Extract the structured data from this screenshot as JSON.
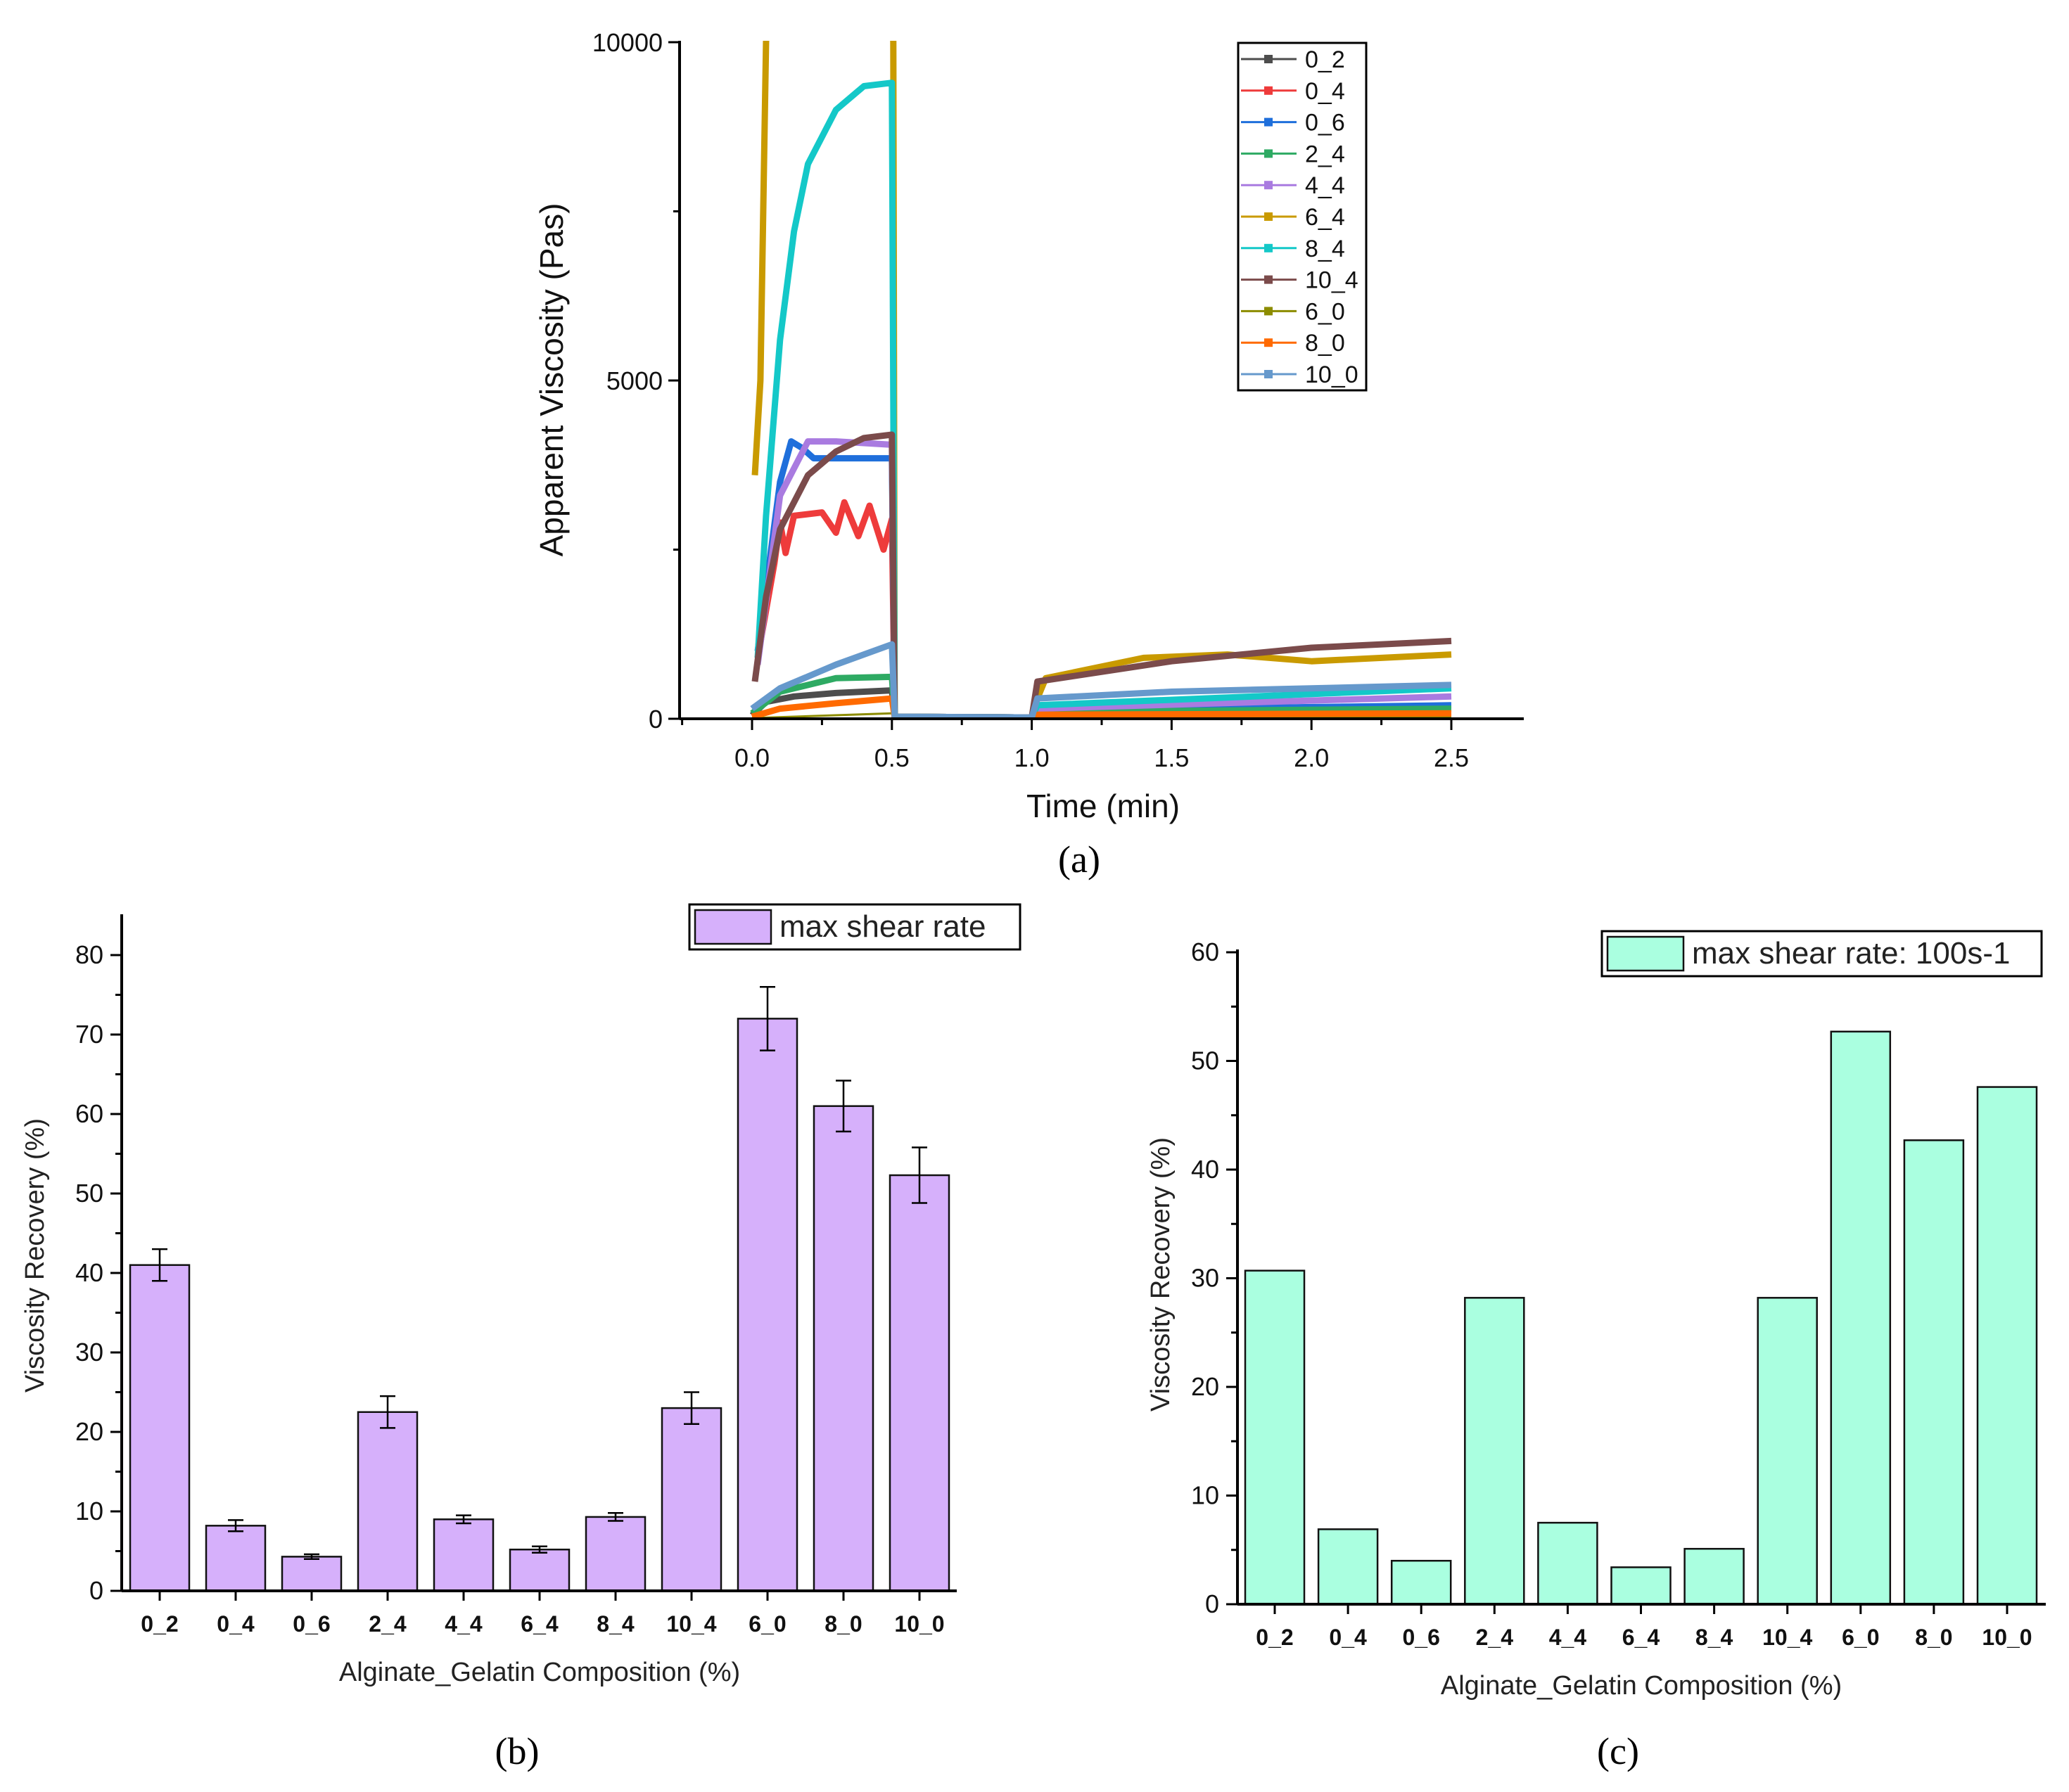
{
  "chart_data": [
    {
      "panel_label": "(a)",
      "type": "line",
      "xlabel": "Time (min)",
      "ylabel": "Apparent Viscosity (Pas)",
      "xlim": [
        -0.25,
        2.75
      ],
      "ylim": [
        0,
        10000
      ],
      "xticks": [
        "0.0",
        "0.5",
        "1.0",
        "1.5",
        "2.0",
        "2.5"
      ],
      "xtick_values": [
        0,
        0.5,
        1.0,
        1.5,
        2.0,
        2.5
      ],
      "yticks": [
        "0",
        "5000",
        "10000"
      ],
      "ytick_values": [
        0,
        5000,
        10000
      ],
      "legend_position": "top-right",
      "series": [
        {
          "name": "0_2",
          "color": "#4d4d4d",
          "marker": "square",
          "points": [
            [
              0,
              50
            ],
            [
              0.05,
              250
            ],
            [
              0.15,
              330
            ],
            [
              0.3,
              380
            ],
            [
              0.5,
              420
            ],
            [
              0.51,
              30
            ],
            [
              1.0,
              20
            ],
            [
              1.02,
              60
            ],
            [
              2.5,
              100
            ]
          ]
        },
        {
          "name": "0_4",
          "color": "#ee3b3b",
          "marker": "circle",
          "points": [
            [
              0.02,
              900
            ],
            [
              0.08,
              2300
            ],
            [
              0.1,
              2900
            ],
            [
              0.12,
              2450
            ],
            [
              0.15,
              3000
            ],
            [
              0.25,
              3050
            ],
            [
              0.3,
              2750
            ],
            [
              0.33,
              3200
            ],
            [
              0.38,
              2700
            ],
            [
              0.42,
              3150
            ],
            [
              0.47,
              2500
            ],
            [
              0.5,
              2950
            ],
            [
              0.51,
              30
            ],
            [
              1.0,
              20
            ],
            [
              1.02,
              80
            ],
            [
              2.5,
              150
            ]
          ]
        },
        {
          "name": "0_6",
          "color": "#1f6fdb",
          "marker": "triangle-up",
          "points": [
            [
              0.02,
              1000
            ],
            [
              0.1,
              3500
            ],
            [
              0.14,
              4100
            ],
            [
              0.18,
              4000
            ],
            [
              0.22,
              3850
            ],
            [
              0.5,
              3850
            ],
            [
              0.51,
              30
            ],
            [
              1.0,
              20
            ],
            [
              1.02,
              120
            ],
            [
              2.5,
              200
            ]
          ]
        },
        {
          "name": "2_4",
          "color": "#2eaa63",
          "marker": "triangle-down",
          "points": [
            [
              0,
              80
            ],
            [
              0.1,
              400
            ],
            [
              0.3,
              600
            ],
            [
              0.5,
              620
            ],
            [
              0.51,
              30
            ],
            [
              1.0,
              20
            ],
            [
              1.02,
              100
            ],
            [
              2.5,
              150
            ]
          ]
        },
        {
          "name": "4_4",
          "color": "#a97be0",
          "marker": "diamond",
          "points": [
            [
              0.02,
              800
            ],
            [
              0.1,
              3300
            ],
            [
              0.2,
              4100
            ],
            [
              0.3,
              4100
            ],
            [
              0.5,
              4050
            ],
            [
              0.51,
              30
            ],
            [
              1.0,
              20
            ],
            [
              1.02,
              150
            ],
            [
              2.5,
              330
            ]
          ]
        },
        {
          "name": "6_4",
          "color": "#c99a00",
          "marker": "triangle-left",
          "points": [
            [
              0.01,
              3600
            ],
            [
              0.03,
              5000
            ],
            [
              0.04,
              7500
            ],
            [
              0.05,
              10000
            ],
            [
              0.06,
              11000
            ],
            [
              0.5,
              11000
            ],
            [
              0.505,
              10000
            ],
            [
              0.51,
              30
            ],
            [
              1.0,
              20
            ],
            [
              1.02,
              300
            ],
            [
              1.05,
              600
            ],
            [
              1.4,
              900
            ],
            [
              1.7,
              950
            ],
            [
              2.0,
              850
            ],
            [
              2.5,
              950
            ]
          ]
        },
        {
          "name": "8_4",
          "color": "#14c8c8",
          "marker": "triangle-right",
          "points": [
            [
              0.02,
              900
            ],
            [
              0.05,
              3000
            ],
            [
              0.1,
              5600
            ],
            [
              0.15,
              7200
            ],
            [
              0.2,
              8200
            ],
            [
              0.3,
              9000
            ],
            [
              0.4,
              9350
            ],
            [
              0.5,
              9400
            ],
            [
              0.51,
              30
            ],
            [
              1.0,
              20
            ],
            [
              1.02,
              200
            ],
            [
              2.5,
              450
            ]
          ]
        },
        {
          "name": "10_4",
          "color": "#7b4b4b",
          "marker": "circle",
          "points": [
            [
              0.01,
              550
            ],
            [
              0.05,
              1800
            ],
            [
              0.1,
              2800
            ],
            [
              0.2,
              3600
            ],
            [
              0.3,
              3950
            ],
            [
              0.4,
              4150
            ],
            [
              0.5,
              4200
            ],
            [
              0.51,
              30
            ],
            [
              1.0,
              20
            ],
            [
              1.02,
              550
            ],
            [
              1.5,
              850
            ],
            [
              2.0,
              1050
            ],
            [
              2.5,
              1150
            ]
          ]
        },
        {
          "name": "6_0",
          "color": "#8c8c00",
          "marker": "star",
          "points": [
            [
              0,
              10
            ],
            [
              0.5,
              80
            ],
            [
              0.51,
              20
            ],
            [
              2.5,
              30
            ]
          ]
        },
        {
          "name": "8_0",
          "color": "#ff6a00",
          "marker": "pentagon",
          "points": [
            [
              0,
              30
            ],
            [
              0.1,
              150
            ],
            [
              0.3,
              230
            ],
            [
              0.5,
              300
            ],
            [
              0.51,
              20
            ],
            [
              1.0,
              20
            ],
            [
              1.02,
              60
            ],
            [
              2.5,
              80
            ]
          ]
        },
        {
          "name": "10_0",
          "color": "#6699cc",
          "marker": "square-open",
          "points": [
            [
              0,
              150
            ],
            [
              0.1,
              450
            ],
            [
              0.3,
              800
            ],
            [
              0.5,
              1100
            ],
            [
              0.51,
              30
            ],
            [
              1.0,
              20
            ],
            [
              1.02,
              300
            ],
            [
              1.5,
              400
            ],
            [
              2.5,
              500
            ]
          ]
        }
      ]
    },
    {
      "panel_label": "(b)",
      "type": "bar",
      "xlabel": "Alginate_Gelatin Composition (%)",
      "ylabel": "Viscosity Recovery (%)",
      "ylim": [
        0,
        85
      ],
      "yticks": [
        "0",
        "10",
        "20",
        "30",
        "40",
        "50",
        "60",
        "70",
        "80"
      ],
      "ytick_values": [
        0,
        10,
        20,
        30,
        40,
        50,
        60,
        70,
        80
      ],
      "categories": [
        "0_2",
        "0_4",
        "0_6",
        "2_4",
        "4_4",
        "6_4",
        "8_4",
        "10_4",
        "6_0",
        "8_0",
        "10_0"
      ],
      "series": [
        {
          "name": "max shear rate",
          "color": "#d6b0fb",
          "values": [
            41,
            8.2,
            4.3,
            22.5,
            9,
            5.2,
            9.3,
            23,
            72,
            61,
            52.3
          ],
          "errors": [
            2,
            0.7,
            0.3,
            2,
            0.5,
            0.4,
            0.5,
            2,
            4,
            3.2,
            3.5
          ]
        }
      ],
      "legend_position": "top-right"
    },
    {
      "panel_label": "(c)",
      "type": "bar",
      "xlabel": "Alginate_Gelatin Composition (%)",
      "ylabel": "Viscosity Recovery (%)",
      "ylim": [
        0,
        60
      ],
      "yticks": [
        "0",
        "10",
        "20",
        "30",
        "40",
        "50",
        "60"
      ],
      "ytick_values": [
        0,
        10,
        20,
        30,
        40,
        50,
        60
      ],
      "categories": [
        "0_2",
        "0_4",
        "0_6",
        "2_4",
        "4_4",
        "6_4",
        "8_4",
        "10_4",
        "6_0",
        "8_0",
        "10_0"
      ],
      "series": [
        {
          "name": "max shear rate: 100s-1",
          "color": "#aaffe0",
          "values": [
            30.7,
            6.9,
            4.0,
            28.2,
            7.5,
            3.4,
            5.1,
            28.2,
            52.7,
            42.7,
            47.6
          ]
        }
      ],
      "legend_position": "top-right"
    }
  ]
}
